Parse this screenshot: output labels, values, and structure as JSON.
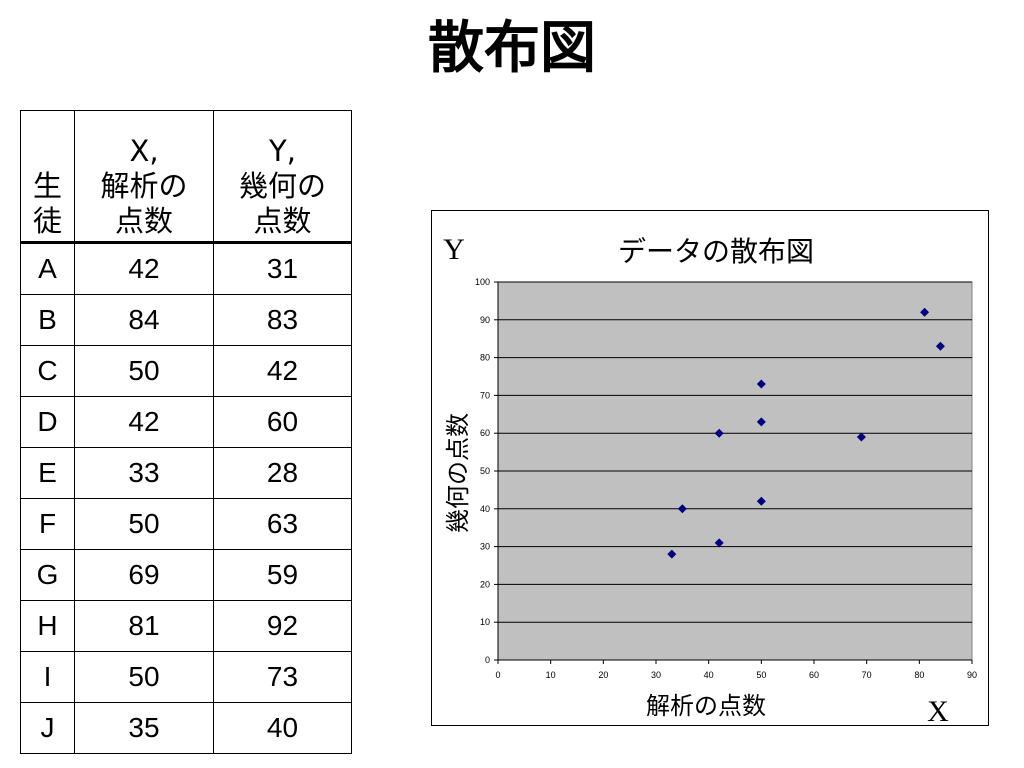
{
  "slide": {
    "title": "散布図"
  },
  "table": {
    "headers": [
      {
        "lines": [
          "生",
          "徒"
        ]
      },
      {
        "lines": [
          "X,",
          "解析の",
          "点数"
        ]
      },
      {
        "lines": [
          "Y,",
          "幾何の",
          "点数"
        ]
      }
    ],
    "rows": [
      {
        "student": "A",
        "x": "42",
        "y": "31"
      },
      {
        "student": "B",
        "x": "84",
        "y": "83"
      },
      {
        "student": "C",
        "x": "50",
        "y": "42"
      },
      {
        "student": "D",
        "x": "42",
        "y": "60"
      },
      {
        "student": "E",
        "x": "33",
        "y": "28"
      },
      {
        "student": "F",
        "x": "50",
        "y": "63"
      },
      {
        "student": "G",
        "x": "69",
        "y": "59"
      },
      {
        "student": "H",
        "x": "81",
        "y": "92"
      },
      {
        "student": "I",
        "x": "50",
        "y": "73"
      },
      {
        "student": "J",
        "x": "35",
        "y": "40"
      }
    ]
  },
  "chart_data": {
    "type": "scatter",
    "title": "データの散布図",
    "xlabel": "解析の点数",
    "ylabel": "幾何の点数",
    "x_axis_letter": "X",
    "y_axis_letter": "Y",
    "xlim": [
      0,
      90
    ],
    "ylim": [
      0,
      100
    ],
    "x_ticks": [
      0,
      10,
      20,
      30,
      40,
      50,
      60,
      70,
      80,
      90
    ],
    "y_ticks": [
      0,
      10,
      20,
      30,
      40,
      50,
      60,
      70,
      80,
      90,
      100
    ],
    "grid": "horizontal",
    "plot_background": "#c0c0c0",
    "marker_color": "#000080",
    "marker": "diamond",
    "points": [
      {
        "x": 42,
        "y": 31
      },
      {
        "x": 84,
        "y": 83
      },
      {
        "x": 50,
        "y": 42
      },
      {
        "x": 42,
        "y": 60
      },
      {
        "x": 33,
        "y": 28
      },
      {
        "x": 50,
        "y": 63
      },
      {
        "x": 69,
        "y": 59
      },
      {
        "x": 81,
        "y": 92
      },
      {
        "x": 50,
        "y": 73
      },
      {
        "x": 35,
        "y": 40
      }
    ]
  }
}
